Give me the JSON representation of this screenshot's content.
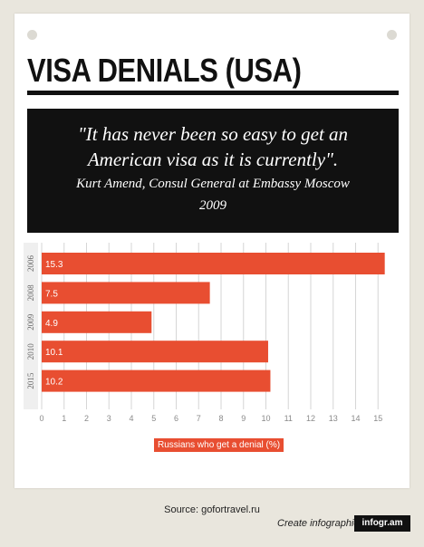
{
  "title": "VISA DENIALS (USA)",
  "quote": {
    "text": "\"It has never been so easy to get an American visa as it is currently\".",
    "author": "Kurt Amend, Consul General at Embassy Moscow",
    "year": "2009"
  },
  "chart_data": {
    "type": "bar",
    "orientation": "horizontal",
    "categories": [
      "2006",
      "2008",
      "2009",
      "2010",
      "2015"
    ],
    "series": [
      {
        "name": "Russians who get a denial (%)",
        "values": [
          15.3,
          7.5,
          4.9,
          10.1,
          10.2
        ]
      }
    ],
    "data_labels": [
      "15.3",
      "7.5",
      "4.9",
      "10.1",
      "10.2"
    ],
    "x_ticks": [
      "0",
      "1",
      "2",
      "3",
      "4",
      "5",
      "6",
      "7",
      "8",
      "9",
      "10",
      "11",
      "12",
      "13",
      "14",
      "15"
    ],
    "xlim": [
      0,
      15.3
    ],
    "grid": true,
    "legend_position": "bottom",
    "bar_color": "#e84e31"
  },
  "source": "Source: gofortravel.ru",
  "footer": {
    "cta": "Create infographics",
    "brand": "infogr.am"
  }
}
